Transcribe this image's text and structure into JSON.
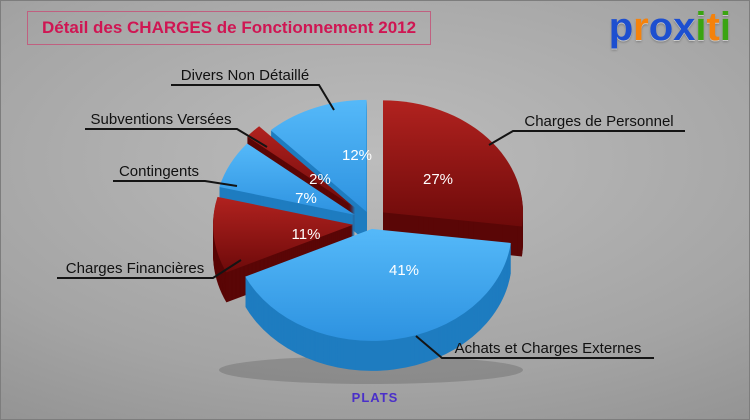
{
  "chart_data": {
    "type": "pie",
    "title": "Détail des CHARGES de Fonctionnement 2012",
    "footer_label": "PLATS",
    "legend_position": "callouts",
    "style": "3d-exploded",
    "palette": {
      "darkred": {
        "top": "#b1221f",
        "bottom": "#6e0a0a",
        "side": "#5a0606"
      },
      "lightblue": {
        "top": "#55b9f9",
        "bottom": "#2d92e0",
        "side": "#1e7cc0"
      }
    },
    "slices": [
      {
        "label": "Charges de Personnel",
        "value": 27,
        "pct_label": "27%",
        "theme": "darkred"
      },
      {
        "label": "Achats et Charges Externes",
        "value": 41,
        "pct_label": "41%",
        "theme": "lightblue"
      },
      {
        "label": "Charges Financières",
        "value": 11,
        "pct_label": "11%",
        "theme": "darkred"
      },
      {
        "label": "Contingents",
        "value": 7,
        "pct_label": "7%",
        "theme": "lightblue"
      },
      {
        "label": "Subventions Versées",
        "value": 2,
        "pct_label": "2%",
        "theme": "darkred"
      },
      {
        "label": "Divers Non Détaillé",
        "value": 12,
        "pct_label": "12%",
        "theme": "lightblue"
      }
    ]
  },
  "colors": {
    "title": "#cf1653",
    "footer": "#4a2fc9",
    "callout_text": "#111111",
    "pct_text": "#ffffff",
    "background": "#a4a4a4"
  },
  "logo": {
    "text": "proxiti",
    "letters": [
      {
        "ch": "p",
        "color": "#1d4fd0"
      },
      {
        "ch": "r",
        "color": "#f5820b"
      },
      {
        "ch": "o",
        "color": "#1d4fd0"
      },
      {
        "ch": "x",
        "color": "#1d4fd0"
      },
      {
        "ch": "i",
        "color": "#3aa412"
      },
      {
        "ch": "t",
        "color": "#f5820b"
      },
      {
        "ch": "i",
        "color": "#3aa412"
      }
    ]
  }
}
